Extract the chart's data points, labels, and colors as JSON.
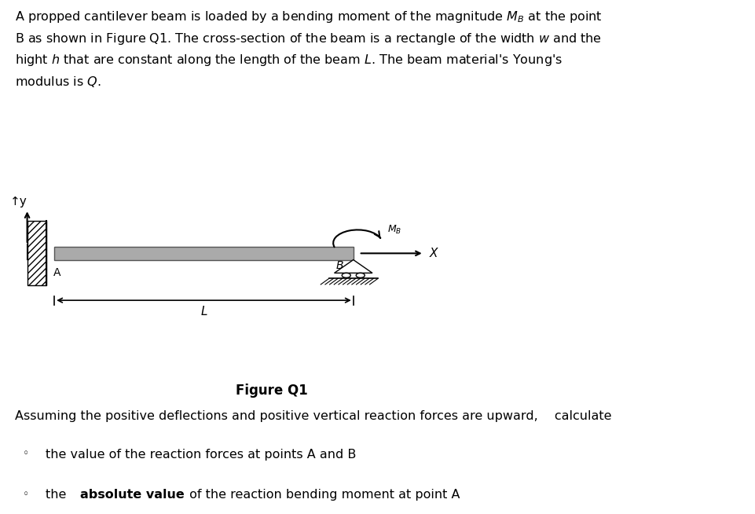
{
  "bg_color": "#ffffff",
  "fig_width": 9.61,
  "fig_height": 6.54,
  "paragraph_text": "A propped cantilever beam is loaded by a bending moment of the magnitude $M_B$ at the point\nB as shown in Figure Q1. The cross-section of the beam is a rectangle of the width $w$ and the\nhight $h$ that are constant along the length of the beam $L$. The beam material’s Young’s\nmodulus is $Q$.",
  "figure_caption": "Figure Q1",
  "assumption_text": "Assuming the positive deflections and positive vertical reaction forces are upward,  calculate",
  "bullet1": "the value of the reaction forces at points A and B",
  "bullet2": "the absolute value of the reaction bending moment at point A",
  "beam_color": "#888888",
  "hatch_color": "#000000",
  "text_color": "#000000"
}
